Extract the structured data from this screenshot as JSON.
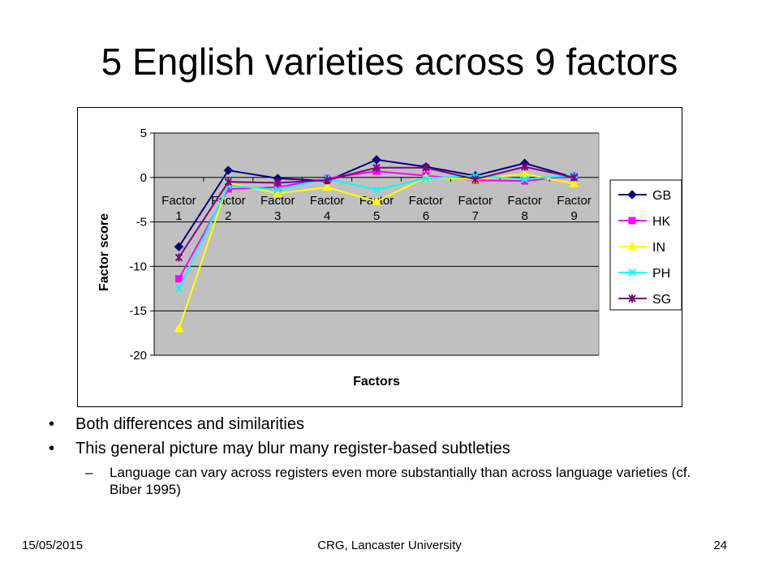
{
  "slide": {
    "title": "5 English varieties across 9 factors",
    "bullets": [
      "Both differences and similarities",
      "This general picture may blur many register-based subtleties"
    ],
    "sub_bullet": "Language can vary across registers even more substantially than across language varieties (cf. Biber 1995)",
    "bullet_glyph": "•",
    "dash_glyph": "–"
  },
  "footer": {
    "date": "15/05/2015",
    "center": "CRG, Lancaster University",
    "page": "24"
  },
  "chart_data": {
    "type": "line",
    "title": "",
    "xlabel": "Factors",
    "ylabel": "Factor score",
    "categories": [
      "Factor 1",
      "Factor 2",
      "Factor 3",
      "Factor 4",
      "Factor 5",
      "Factor 6",
      "Factor 7",
      "Factor 8",
      "Factor 9"
    ],
    "yticks": [
      5,
      0,
      -5,
      -10,
      -15,
      -20
    ],
    "ylim": [
      -20,
      5
    ],
    "grid": true,
    "plot_background": "#c0c0c0",
    "legend_position": "right",
    "series": [
      {
        "name": "GB",
        "color": "#000080",
        "marker": "diamond",
        "values": [
          -7.8,
          0.8,
          -0.1,
          -0.4,
          2.0,
          1.2,
          0.2,
          1.6,
          0.0
        ]
      },
      {
        "name": "HK",
        "color": "#ff00ff",
        "marker": "square",
        "values": [
          -11.4,
          -1.3,
          -1.1,
          -0.1,
          0.7,
          0.2,
          -0.3,
          -0.4,
          0.2
        ]
      },
      {
        "name": "IN",
        "color": "#ffff00",
        "marker": "triangle",
        "values": [
          -17.0,
          -0.6,
          -1.8,
          -1.1,
          -2.7,
          0.0,
          -0.2,
          0.4,
          -0.7
        ]
      },
      {
        "name": "PH",
        "color": "#00ffff",
        "marker": "x",
        "values": [
          -12.5,
          -0.9,
          -1.4,
          -0.1,
          -1.4,
          -0.1,
          0.2,
          -0.2,
          0.3
        ]
      },
      {
        "name": "SG",
        "color": "#800080",
        "marker": "star",
        "values": [
          -9.0,
          -0.5,
          -0.6,
          -0.3,
          1.1,
          1.1,
          -0.2,
          1.2,
          0.0
        ]
      }
    ]
  }
}
